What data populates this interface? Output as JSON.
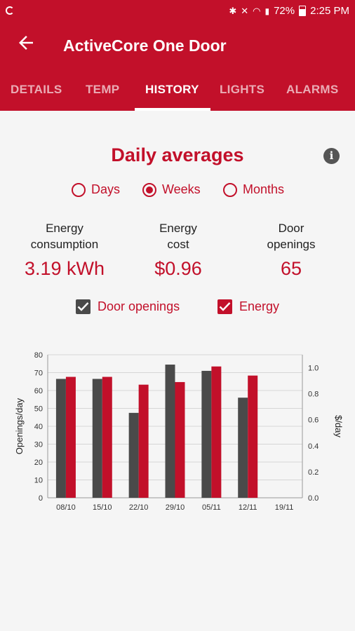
{
  "status_bar": {
    "battery": "72%",
    "time": "2:25 PM"
  },
  "appbar": {
    "title": "ActiveCore One Door"
  },
  "tabs": [
    {
      "label": "DETAILS",
      "active": false
    },
    {
      "label": "TEMP",
      "active": false
    },
    {
      "label": "HISTORY",
      "active": true
    },
    {
      "label": "LIGHTS",
      "active": false
    },
    {
      "label": "ALARMS",
      "active": false
    }
  ],
  "history": {
    "heading": "Daily averages",
    "period_options": [
      {
        "label": "Days",
        "selected": false
      },
      {
        "label": "Weeks",
        "selected": true
      },
      {
        "label": "Months",
        "selected": false
      }
    ],
    "stats": [
      {
        "label_line1": "Energy",
        "label_line2": "consumption",
        "value": "3.19 kWh"
      },
      {
        "label_line1": "Energy",
        "label_line2": "cost",
        "value": "$0.96"
      },
      {
        "label_line1": "Door",
        "label_line2": "openings",
        "value": "65"
      }
    ],
    "toggles": [
      {
        "label": "Door openings",
        "checked": true,
        "color": "#4a4a4a"
      },
      {
        "label": "Energy",
        "checked": true,
        "color": "#c2102a"
      }
    ]
  },
  "colors": {
    "accent": "#c2102a",
    "door_series": "#4a4a4a",
    "energy_series": "#c2102a"
  },
  "chart_data": {
    "type": "bar",
    "categories": [
      "08/10",
      "15/10",
      "22/10",
      "29/10",
      "05/11",
      "12/11",
      "19/11"
    ],
    "series": [
      {
        "name": "Door openings",
        "axis": "left",
        "values": [
          66.5,
          66.5,
          47.5,
          74.5,
          71,
          56,
          null
        ]
      },
      {
        "name": "Energy",
        "axis": "right",
        "values": [
          0.93,
          0.93,
          0.87,
          0.89,
          1.01,
          0.94,
          null
        ]
      }
    ],
    "ylabel": "Openings/day",
    "y2label": "$/day",
    "ylim": [
      0,
      80
    ],
    "y2lim": [
      0,
      1.1
    ],
    "yticks": [
      "0",
      "10",
      "20",
      "30",
      "40",
      "50",
      "60",
      "70",
      "80"
    ],
    "y2ticks": [
      "0.0",
      "0.2",
      "0.4",
      "0.6",
      "0.8",
      "1.0"
    ],
    "grid": true
  }
}
